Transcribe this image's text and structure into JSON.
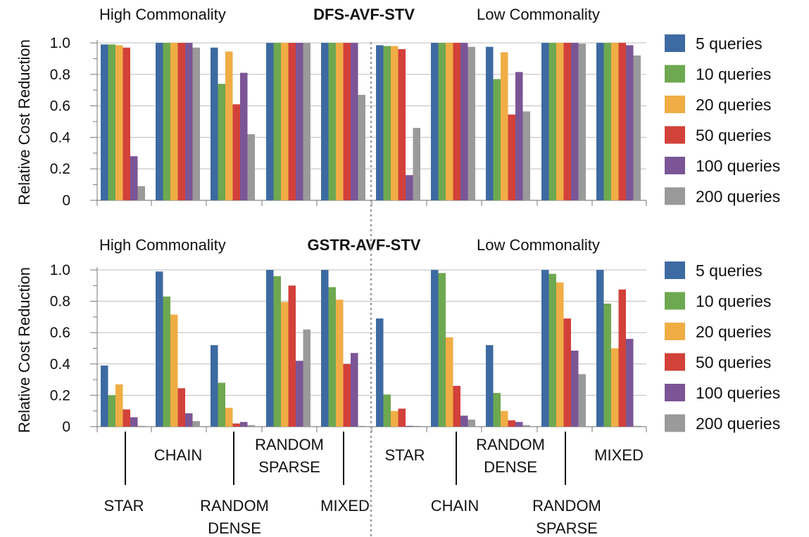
{
  "y_axis_label": "Relative Cost Reduction",
  "legend": {
    "entries": [
      "5 queries",
      "10 queries",
      "20  queries",
      "50 queries",
      "100 queries",
      "200 queries"
    ],
    "colors": [
      "#3d6aa2",
      "#6ea850",
      "#f0ad45",
      "#d2413a",
      "#7b5596",
      "#9a9a9a"
    ]
  },
  "category_labels": {
    "row1": [
      "STAR",
      "RANDOM DENSE",
      "MIXED",
      "CHAIN",
      "RANDOM SPARSE"
    ],
    "row2": [
      "CHAIN",
      "RANDOM SPARSE",
      "STAR",
      "RANDOM DENSE",
      "MIXED"
    ]
  },
  "chart_data": [
    {
      "type": "bar",
      "title": "DFS-AVF-STV",
      "group_labels": [
        "High Commonality",
        "Low Commonality"
      ],
      "ylabel": "Relative Cost Reduction",
      "ylim": [
        0,
        1.0
      ],
      "yticks": [
        "0",
        "0.2",
        "0.4",
        "0.6",
        "0.8",
        "1.0"
      ],
      "grid": true,
      "legend_position": "right",
      "categories": [
        "STAR",
        "CHAIN",
        "RANDOM DENSE",
        "RANDOM SPARSE",
        "MIXED",
        "STAR",
        "CHAIN",
        "RANDOM DENSE",
        "RANDOM SPARSE",
        "MIXED"
      ],
      "series": [
        {
          "name": "5 queries",
          "values": [
            0.99,
            1.0,
            0.97,
            1.0,
            1.0,
            0.985,
            1.0,
            0.975,
            1.0,
            1.0
          ]
        },
        {
          "name": "10 queries",
          "values": [
            0.99,
            1.0,
            0.74,
            1.0,
            1.0,
            0.98,
            1.0,
            0.77,
            1.0,
            1.0
          ]
        },
        {
          "name": "20  queries",
          "values": [
            0.985,
            1.0,
            0.945,
            1.0,
            1.0,
            0.98,
            1.0,
            0.94,
            1.0,
            1.0
          ]
        },
        {
          "name": "50 queries",
          "values": [
            0.97,
            1.0,
            0.61,
            1.0,
            1.0,
            0.96,
            1.0,
            0.545,
            1.0,
            1.0
          ]
        },
        {
          "name": "100 queries",
          "values": [
            0.28,
            1.0,
            0.81,
            1.0,
            1.0,
            0.16,
            1.0,
            0.815,
            1.0,
            0.985
          ]
        },
        {
          "name": "200 queries",
          "values": [
            0.09,
            0.97,
            0.42,
            1.0,
            0.67,
            0.46,
            0.975,
            0.565,
            0.995,
            0.92
          ]
        }
      ]
    },
    {
      "type": "bar",
      "title": "GSTR-AVF-STV",
      "group_labels": [
        "High Commonality",
        "Low Commonality"
      ],
      "ylabel": "Relative Cost Reduction",
      "ylim": [
        0,
        1.0
      ],
      "yticks": [
        "0",
        "0.2",
        "0.4",
        "0.6",
        "0.8",
        "1.0"
      ],
      "grid": true,
      "legend_position": "right",
      "categories": [
        "STAR",
        "CHAIN",
        "RANDOM DENSE",
        "RANDOM SPARSE",
        "MIXED",
        "STAR",
        "CHAIN",
        "RANDOM DENSE",
        "RANDOM SPARSE",
        "MIXED"
      ],
      "series": [
        {
          "name": "5 queries",
          "values": [
            0.39,
            0.99,
            0.52,
            1.0,
            1.0,
            0.69,
            1.0,
            0.52,
            1.0,
            1.0
          ]
        },
        {
          "name": "10 queries",
          "values": [
            0.2,
            0.83,
            0.28,
            0.96,
            0.89,
            0.205,
            0.98,
            0.215,
            0.975,
            0.785
          ]
        },
        {
          "name": "20  queries",
          "values": [
            0.27,
            0.715,
            0.12,
            0.795,
            0.81,
            0.1,
            0.57,
            0.1,
            0.92,
            0.5
          ]
        },
        {
          "name": "50 queries",
          "values": [
            0.11,
            0.245,
            0.02,
            0.9,
            0.4,
            0.115,
            0.26,
            0.04,
            0.69,
            0.875
          ]
        },
        {
          "name": "100 queries",
          "values": [
            0.06,
            0.085,
            0.03,
            0.42,
            0.47,
            0.005,
            0.07,
            0.03,
            0.485,
            0.56
          ]
        },
        {
          "name": "200 queries",
          "values": [
            0.005,
            0.035,
            0.01,
            0.62,
            0.005,
            0.005,
            0.045,
            0.01,
            0.335,
            0.005
          ]
        }
      ]
    }
  ]
}
